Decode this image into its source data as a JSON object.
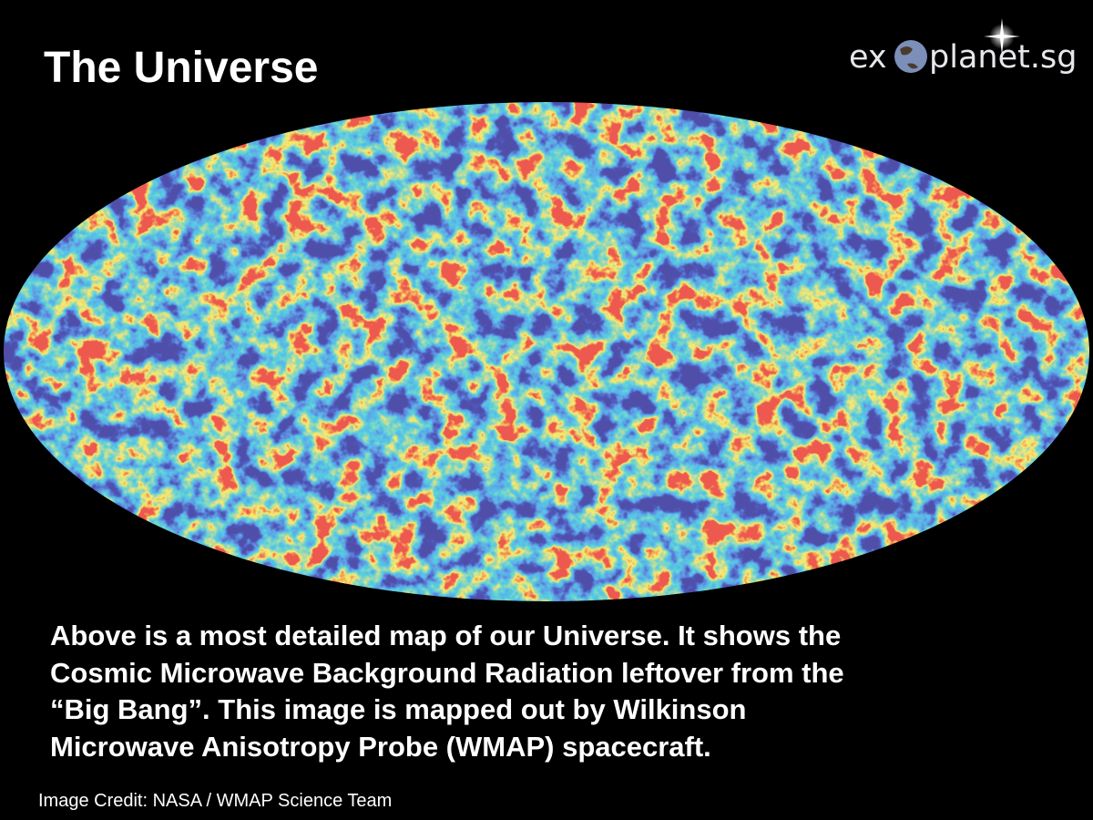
{
  "slide": {
    "title": "The Universe",
    "logo": {
      "prefix": "ex",
      "suffix": "planet.sg"
    },
    "description": [
      "Above is a most detailed map of our Universe. It shows the",
      "Cosmic Microwave Background Radiation leftover from the",
      "“Big Bang”. This image is mapped out by Wilkinson",
      "Microwave Anisotropy Probe (WMAP) spacecraft."
    ],
    "credit": "Image Credit: NASA / WMAP Science Team"
  }
}
